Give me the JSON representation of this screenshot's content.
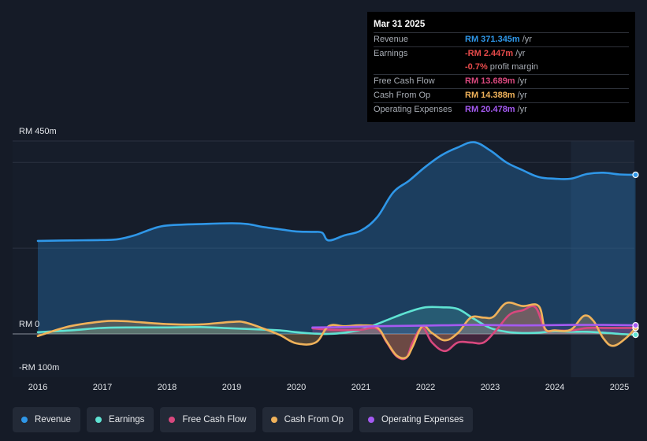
{
  "tooltip": {
    "date": "Mar 31 2025",
    "rows": [
      {
        "label": "Revenue",
        "value": "RM 371.345m",
        "unit": "/yr",
        "color": "#2f97e8"
      },
      {
        "label": "Earnings",
        "value": "-RM 2.447m",
        "unit": "/yr",
        "color": "#e84b4b"
      },
      {
        "label": "",
        "value": "-0.7%",
        "unit": "profit margin",
        "color": "#e84b4b"
      },
      {
        "label": "Free Cash Flow",
        "value": "RM 13.689m",
        "unit": "/yr",
        "color": "#d9487e"
      },
      {
        "label": "Cash From Op",
        "value": "RM 14.388m",
        "unit": "/yr",
        "color": "#f0b25a"
      },
      {
        "label": "Operating Expenses",
        "value": "RM 20.478m",
        "unit": "/yr",
        "color": "#a55af2"
      }
    ]
  },
  "legend": [
    {
      "label": "Revenue",
      "color": "#2f97e8"
    },
    {
      "label": "Earnings",
      "color": "#5fe3d3"
    },
    {
      "label": "Free Cash Flow",
      "color": "#d9487e"
    },
    {
      "label": "Cash From Op",
      "color": "#f0b25a"
    },
    {
      "label": "Operating Expenses",
      "color": "#a55af2"
    }
  ],
  "chart_data": {
    "type": "line",
    "title": "",
    "xlabel": "",
    "ylabel": "",
    "ylim": [
      -100,
      450
    ],
    "y_tick_labels": [
      "RM 450m",
      "RM 0",
      "-RM 100m"
    ],
    "xlim": [
      2015.6,
      2025.25
    ],
    "x_tick_labels": [
      "2016",
      "2017",
      "2018",
      "2019",
      "2020",
      "2021",
      "2022",
      "2023",
      "2024",
      "2025"
    ],
    "highlight_from": 2024.25,
    "series": [
      {
        "name": "Revenue",
        "color": "#2f97e8",
        "x": [
          2016.0,
          2016.5,
          2017.0,
          2017.25,
          2017.5,
          2017.75,
          2017.95,
          2018.25,
          2018.5,
          2019.0,
          2019.25,
          2019.5,
          2019.75,
          2020.0,
          2020.25,
          2020.4,
          2020.5,
          2020.75,
          2021.0,
          2021.25,
          2021.5,
          2021.75,
          2022.0,
          2022.25,
          2022.5,
          2022.75,
          2023.0,
          2023.25,
          2023.5,
          2023.75,
          2024.0,
          2024.25,
          2024.5,
          2024.75,
          2025.0,
          2025.25
        ],
        "y": [
          217,
          218,
          219,
          221,
          230,
          244,
          252,
          255,
          256,
          258,
          256,
          249,
          244,
          239,
          238,
          236,
          218,
          230,
          241,
          272,
          330,
          358,
          390,
          417,
          435,
          447,
          428,
          400,
          382,
          366,
          362,
          362,
          373,
          376,
          372,
          371
        ]
      },
      {
        "name": "Earnings",
        "color": "#5fe3d3",
        "x": [
          2016.0,
          2016.5,
          2017.0,
          2017.5,
          2018.0,
          2018.5,
          2019.0,
          2019.5,
          2019.75,
          2020.0,
          2020.25,
          2020.5,
          2020.75,
          2021.0,
          2021.25,
          2021.5,
          2021.75,
          2022.0,
          2022.25,
          2022.5,
          2022.75,
          2023.0,
          2023.25,
          2023.5,
          2023.75,
          2024.0,
          2024.25,
          2024.5,
          2024.75,
          2025.0,
          2025.25
        ],
        "y": [
          4,
          8,
          14,
          15,
          15,
          16,
          13,
          10,
          8,
          4,
          1,
          0,
          3,
          10,
          23,
          38,
          52,
          62,
          62,
          58,
          35,
          14,
          5,
          2,
          3,
          6,
          5,
          5,
          3,
          0,
          -2
        ]
      },
      {
        "name": "Free Cash Flow",
        "color": "#d9487e",
        "x": [
          2020.25,
          2020.5,
          2020.75,
          2021.0,
          2021.25,
          2021.4,
          2021.55,
          2021.7,
          2021.8,
          2021.95,
          2022.1,
          2022.3,
          2022.5,
          2022.7,
          2022.9,
          2023.1,
          2023.3,
          2023.5,
          2023.7,
          2023.85,
          2024.0,
          2024.25,
          2024.5,
          2024.75,
          2025.0,
          2025.25
        ],
        "y": [
          13,
          10,
          9,
          10,
          12,
          -20,
          -52,
          -56,
          -20,
          15,
          -20,
          -40,
          -20,
          -20,
          -20,
          10,
          45,
          55,
          62,
          10,
          8,
          8,
          14,
          14,
          14,
          14
        ]
      },
      {
        "name": "Cash From Op",
        "color": "#f0b25a",
        "x": [
          2016.0,
          2016.5,
          2017.0,
          2017.3,
          2017.6,
          2018.0,
          2018.5,
          2019.0,
          2019.2,
          2019.5,
          2019.75,
          2020.0,
          2020.3,
          2020.5,
          2020.75,
          2021.0,
          2021.25,
          2021.4,
          2021.55,
          2021.7,
          2021.8,
          2021.95,
          2022.1,
          2022.3,
          2022.5,
          2022.7,
          2022.9,
          2023.05,
          2023.25,
          2023.5,
          2023.75,
          2023.85,
          2024.0,
          2024.25,
          2024.45,
          2024.6,
          2024.75,
          2024.9,
          2025.1,
          2025.25
        ],
        "y": [
          -5,
          18,
          29,
          30,
          27,
          23,
          22,
          28,
          27,
          12,
          -3,
          -22,
          -20,
          18,
          18,
          20,
          15,
          -18,
          -50,
          -55,
          -30,
          18,
          2,
          -15,
          2,
          38,
          38,
          40,
          72,
          65,
          65,
          12,
          8,
          10,
          42,
          30,
          -10,
          -28,
          -10,
          14
        ]
      },
      {
        "name": "Operating Expenses",
        "color": "#a55af2",
        "x": [
          2020.25,
          2020.75,
          2021.25,
          2021.75,
          2022.25,
          2022.75,
          2023.25,
          2023.75,
          2024.25,
          2024.75,
          2025.25
        ],
        "y": [
          15,
          16,
          18,
          19,
          20,
          21,
          20,
          20,
          21,
          21,
          20
        ]
      }
    ]
  }
}
